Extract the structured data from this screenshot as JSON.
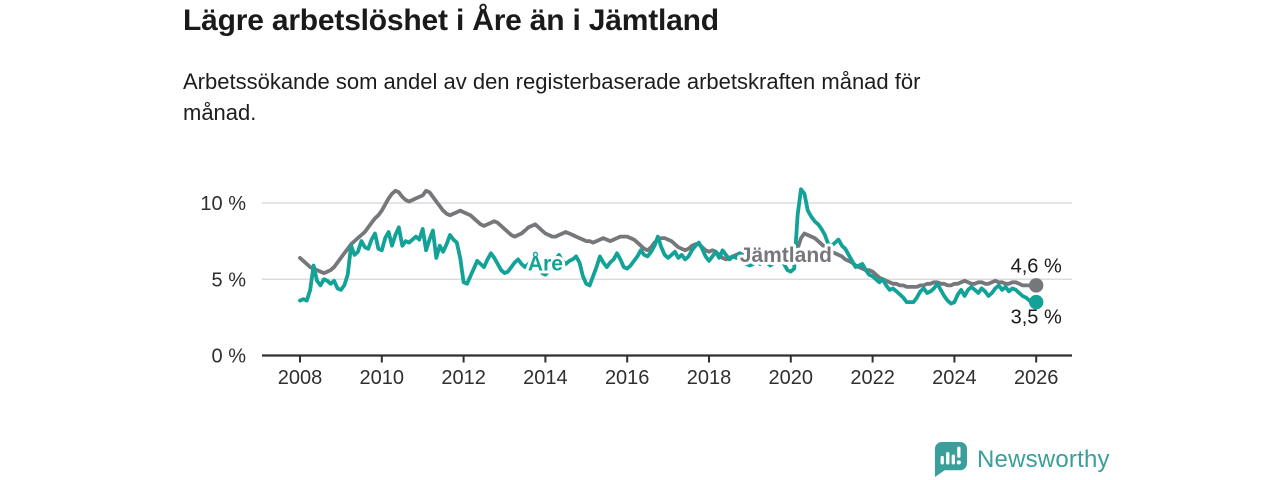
{
  "header": {
    "title": "Lägre arbetslöshet i Åre än i Jämtland",
    "subtitle_lines": [
      "Arbetssökande som andel av den registerbaserade arbetskraften månad för",
      "månad."
    ]
  },
  "branding": {
    "name": "Newsworthy",
    "color": "#3a9f9a"
  },
  "chart_data": {
    "type": "line",
    "title": "Lägre arbetslöshet i Åre än i Jämtland",
    "unit": "%",
    "grid": "horizontal-only",
    "legend_position": "inline-labels",
    "x_axis": {
      "start_year": 2008,
      "interval_months": 1,
      "ticks": [
        2008,
        2010,
        2012,
        2014,
        2016,
        2018,
        2020,
        2022,
        2024,
        2026
      ],
      "range_years": [
        2007.1,
        2026.9
      ]
    },
    "y_axis": {
      "ticks": [
        {
          "value": 0,
          "label": "0 %"
        },
        {
          "value": 5,
          "label": "5 %"
        },
        {
          "value": 10,
          "label": "10 %"
        }
      ],
      "gridline_values": [
        5,
        10
      ],
      "range": [
        0,
        12.2
      ]
    },
    "series": [
      {
        "name": "Jämtland",
        "id": "jamtland",
        "color": "#76777b",
        "inline_label": {
          "text": "Jämtland",
          "x": 2019.88,
          "y": 6.62
        },
        "end_value_label": {
          "text": "4,6 %",
          "position": "above"
        },
        "end_value": 4.6,
        "values": [
          6.4,
          6.2,
          6.0,
          5.8,
          5.7,
          5.6,
          5.5,
          5.4,
          5.5,
          5.6,
          5.8,
          6.1,
          6.4,
          6.7,
          7.0,
          7.3,
          7.5,
          7.7,
          7.9,
          8.1,
          8.4,
          8.7,
          9.0,
          9.2,
          9.5,
          9.9,
          10.3,
          10.6,
          10.8,
          10.7,
          10.4,
          10.2,
          10.1,
          10.2,
          10.3,
          10.4,
          10.5,
          10.8,
          10.7,
          10.4,
          10.1,
          9.8,
          9.5,
          9.3,
          9.2,
          9.3,
          9.4,
          9.5,
          9.4,
          9.3,
          9.2,
          9.0,
          8.8,
          8.6,
          8.5,
          8.6,
          8.7,
          8.8,
          8.7,
          8.5,
          8.3,
          8.1,
          7.9,
          7.8,
          7.9,
          8.0,
          8.2,
          8.4,
          8.5,
          8.6,
          8.4,
          8.2,
          8.0,
          7.9,
          7.8,
          7.8,
          7.9,
          8.0,
          8.1,
          8.0,
          7.9,
          7.8,
          7.7,
          7.6,
          7.5,
          7.5,
          7.4,
          7.5,
          7.6,
          7.7,
          7.6,
          7.5,
          7.6,
          7.7,
          7.8,
          7.8,
          7.8,
          7.7,
          7.6,
          7.4,
          7.2,
          7.0,
          6.9,
          7.1,
          7.4,
          7.6,
          7.7,
          7.7,
          7.6,
          7.5,
          7.3,
          7.1,
          7.0,
          6.9,
          7.0,
          7.2,
          7.3,
          7.3,
          7.1,
          6.9,
          6.8,
          6.9,
          6.8,
          6.6,
          6.4,
          6.3,
          6.4,
          6.5,
          6.6,
          6.7,
          6.6,
          6.5,
          6.4,
          6.3,
          6.2,
          6.2,
          6.3,
          6.4,
          6.4,
          6.3,
          6.2,
          6.2,
          6.3,
          6.3,
          6.3,
          6.3,
          7.0,
          7.7,
          8.0,
          7.9,
          7.8,
          7.7,
          7.5,
          7.3,
          7.1,
          6.9,
          6.8,
          6.7,
          6.6,
          6.5,
          6.3,
          6.2,
          6.1,
          5.9,
          5.8,
          5.7,
          5.6,
          5.6,
          5.5,
          5.3,
          5.1,
          5.0,
          4.9,
          4.8,
          4.7,
          4.7,
          4.6,
          4.6,
          4.5,
          4.5,
          4.5,
          4.5,
          4.6,
          4.6,
          4.7,
          4.7,
          4.8,
          4.8,
          4.7,
          4.7,
          4.6,
          4.6,
          4.7,
          4.7,
          4.8,
          4.9,
          4.8,
          4.7,
          4.7,
          4.8,
          4.8,
          4.7,
          4.7,
          4.8,
          4.9,
          4.8,
          4.8,
          4.7,
          4.7,
          4.8,
          4.8,
          4.7,
          4.6,
          4.6,
          4.6,
          4.6,
          4.6
        ]
      },
      {
        "name": "Åre",
        "id": "are",
        "color": "#13a297",
        "inline_label": {
          "text": "Åre",
          "x": 2014.0,
          "y": 6.05
        },
        "end_value_label": {
          "text": "3,5 %",
          "position": "below"
        },
        "end_value": 3.5,
        "values": [
          3.6,
          3.7,
          3.6,
          4.3,
          5.9,
          4.9,
          4.6,
          5.0,
          4.9,
          4.7,
          4.9,
          4.4,
          4.3,
          4.6,
          5.3,
          7.2,
          6.6,
          6.8,
          7.5,
          7.1,
          7.0,
          7.6,
          8.0,
          7.0,
          6.9,
          7.7,
          8.1,
          7.2,
          7.9,
          8.4,
          7.2,
          7.5,
          7.4,
          7.6,
          7.8,
          7.6,
          8.3,
          6.9,
          7.6,
          8.2,
          6.4,
          7.2,
          6.8,
          7.3,
          7.9,
          7.6,
          7.4,
          6.4,
          4.8,
          4.7,
          5.2,
          5.7,
          6.2,
          6.0,
          5.8,
          6.3,
          6.7,
          6.4,
          6.0,
          5.6,
          5.4,
          5.5,
          5.8,
          6.1,
          6.3,
          6.0,
          5.8,
          6.0,
          6.2,
          6.4,
          6.1,
          5.4,
          5.3,
          5.6,
          6.0,
          6.3,
          6.6,
          6.2,
          6.0,
          6.2,
          6.3,
          6.5,
          6.1,
          5.2,
          4.7,
          4.6,
          5.2,
          5.8,
          6.5,
          6.1,
          5.8,
          6.1,
          6.3,
          6.7,
          6.3,
          5.8,
          5.7,
          5.9,
          6.2,
          6.5,
          6.9,
          6.6,
          6.5,
          6.8,
          7.2,
          7.8,
          7.1,
          6.6,
          6.4,
          6.6,
          6.8,
          6.4,
          6.6,
          6.3,
          6.5,
          6.9,
          7.2,
          7.4,
          7.0,
          6.5,
          6.2,
          6.5,
          6.8,
          6.4,
          6.9,
          6.6,
          6.3,
          6.5,
          6.4,
          6.7,
          6.4,
          6.0,
          5.9,
          6.0,
          6.2,
          6.0,
          6.3,
          6.1,
          5.9,
          6.1,
          6.2,
          6.4,
          6.0,
          5.6,
          5.5,
          5.7,
          9.2,
          10.9,
          10.6,
          9.5,
          9.1,
          8.8,
          8.6,
          8.3,
          7.9,
          7.3,
          7.2,
          7.4,
          7.6,
          7.2,
          7.0,
          6.6,
          6.2,
          5.8,
          5.9,
          6.0,
          5.6,
          5.3,
          5.2,
          5.0,
          4.8,
          5.0,
          4.6,
          4.3,
          4.4,
          4.2,
          4.0,
          3.8,
          3.5,
          3.5,
          3.5,
          3.8,
          4.2,
          4.4,
          4.1,
          4.2,
          4.4,
          4.7,
          4.3,
          3.9,
          3.6,
          3.4,
          3.5,
          4.0,
          4.3,
          3.9,
          4.3,
          4.5,
          4.3,
          4.1,
          4.4,
          4.2,
          3.9,
          4.1,
          4.4,
          4.6,
          4.3,
          4.5,
          4.2,
          4.4,
          4.3,
          4.1,
          3.9,
          3.8,
          3.6,
          3.6,
          3.5
        ]
      }
    ]
  }
}
